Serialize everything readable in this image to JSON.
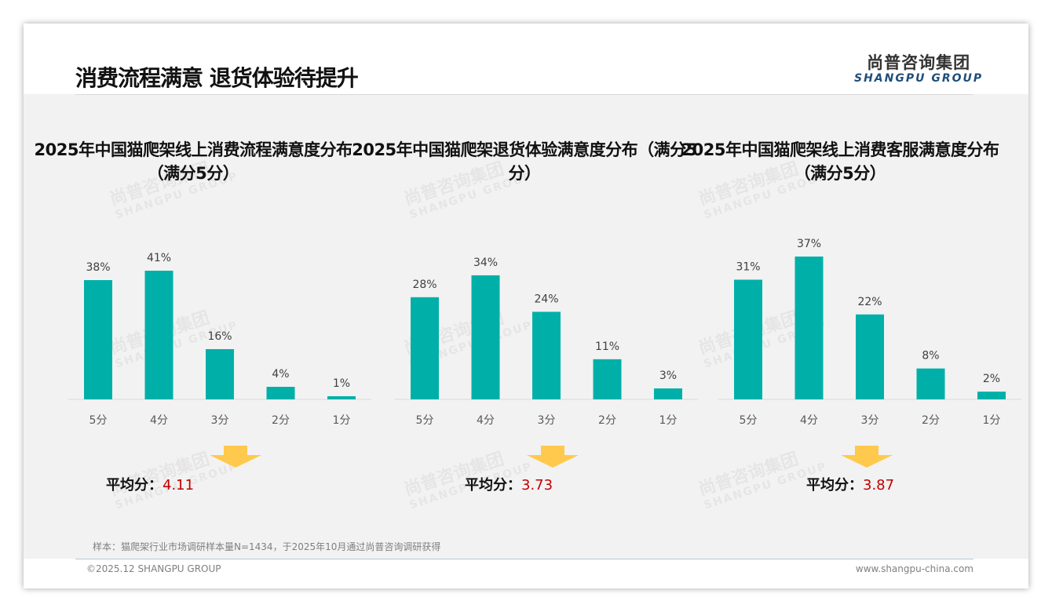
{
  "header": {
    "title": "消费流程满意 退货体验待提升",
    "logo_cn": "尚普咨询集团",
    "logo_en": "SHANGPU GROUP"
  },
  "chart_data": [
    {
      "type": "bar",
      "title": "2025年中国猫爬架线上消费流程满意度分布（满分5分）",
      "categories": [
        "5分",
        "4分",
        "3分",
        "2分",
        "1分"
      ],
      "values": [
        38,
        41,
        16,
        4,
        1
      ],
      "value_labels": [
        "38%",
        "41%",
        "16%",
        "4%",
        "1%"
      ],
      "unit": "%",
      "avg_label": "平均分：",
      "avg_value": "4.11",
      "color": "#00b0a8"
    },
    {
      "type": "bar",
      "title": "2025年中国猫爬架退货体验满意度分布（满分5分）",
      "categories": [
        "5分",
        "4分",
        "3分",
        "2分",
        "1分"
      ],
      "values": [
        28,
        34,
        24,
        11,
        3
      ],
      "value_labels": [
        "28%",
        "34%",
        "24%",
        "11%",
        "3%"
      ],
      "unit": "%",
      "avg_label": "平均分：",
      "avg_value": "3.73",
      "color": "#00b0a8"
    },
    {
      "type": "bar",
      "title": "2025年中国猫爬架线上消费客服满意度分布（满分5分）",
      "categories": [
        "5分",
        "4分",
        "3分",
        "2分",
        "1分"
      ],
      "values": [
        31,
        37,
        22,
        8,
        2
      ],
      "value_labels": [
        "31%",
        "37%",
        "22%",
        "8%",
        "2%"
      ],
      "unit": "%",
      "avg_label": "平均分：",
      "avg_value": "3.87",
      "color": "#00b0a8"
    }
  ],
  "footer": {
    "note": "样本：猫爬架行业市场调研样本量N=1434，于2025年10月通过尚普咨询调研获得",
    "copyright": "©2025.12 SHANGPU GROUP",
    "website": "www.shangpu-china.com"
  },
  "colors": {
    "bar": "#00b0a8",
    "arrow": "#ffc94d",
    "avg_value": "#c00000"
  }
}
